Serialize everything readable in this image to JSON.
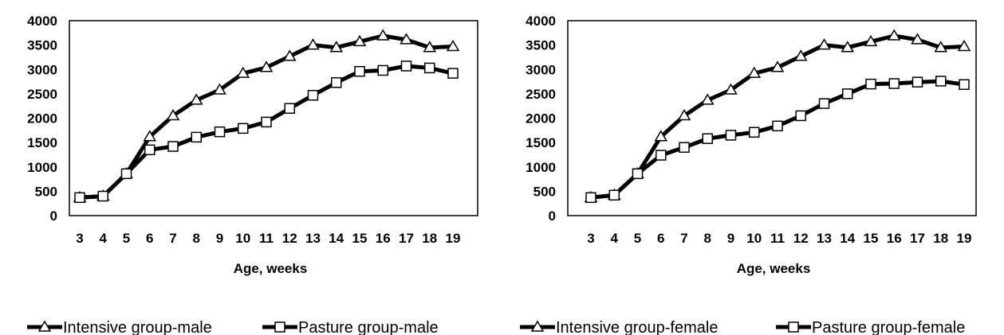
{
  "chart_data": [
    {
      "type": "line",
      "title": "",
      "xlabel": "Age, weeks",
      "ylabel": "",
      "ylim": [
        0,
        4000
      ],
      "yticks": [
        0,
        500,
        1000,
        1500,
        2000,
        2500,
        3000,
        3500,
        4000
      ],
      "x": [
        3,
        4,
        5,
        6,
        7,
        8,
        9,
        10,
        11,
        12,
        13,
        14,
        15,
        16,
        17,
        18,
        19
      ],
      "grid": false,
      "legend_position": "bottom",
      "series": [
        {
          "name": "Intensive group-male",
          "marker": "triangle",
          "values": [
            370,
            400,
            860,
            1620,
            2050,
            2370,
            2580,
            2920,
            3040,
            3270,
            3500,
            3450,
            3570,
            3690,
            3610,
            3450,
            3470
          ]
        },
        {
          "name": "Pasture group-male",
          "marker": "square",
          "values": [
            370,
            400,
            860,
            1350,
            1420,
            1610,
            1720,
            1790,
            1920,
            2200,
            2470,
            2730,
            2960,
            2980,
            3070,
            3030,
            2920
          ]
        }
      ]
    },
    {
      "type": "line",
      "title": "",
      "xlabel": "Age, weeks",
      "ylabel": "",
      "ylim": [
        0,
        4000
      ],
      "yticks": [
        0,
        500,
        1000,
        1500,
        2000,
        2500,
        3000,
        3500,
        4000
      ],
      "x": [
        3,
        4,
        5,
        6,
        7,
        8,
        9,
        10,
        11,
        12,
        13,
        14,
        15,
        16,
        17,
        18,
        19
      ],
      "grid": false,
      "legend_position": "bottom",
      "series": [
        {
          "name": "Intensive group-female",
          "marker": "triangle",
          "values": [
            370,
            420,
            860,
            1620,
            2050,
            2370,
            2580,
            2920,
            3040,
            3270,
            3500,
            3450,
            3570,
            3690,
            3610,
            3450,
            3470
          ]
        },
        {
          "name": "Pasture group-female",
          "marker": "square",
          "values": [
            370,
            420,
            860,
            1240,
            1400,
            1580,
            1650,
            1710,
            1840,
            2050,
            2300,
            2500,
            2700,
            2710,
            2740,
            2760,
            2690
          ]
        }
      ]
    }
  ],
  "colors": {
    "line": "#000000",
    "marker_fill": "#ffffff",
    "background": "#ffffff"
  }
}
